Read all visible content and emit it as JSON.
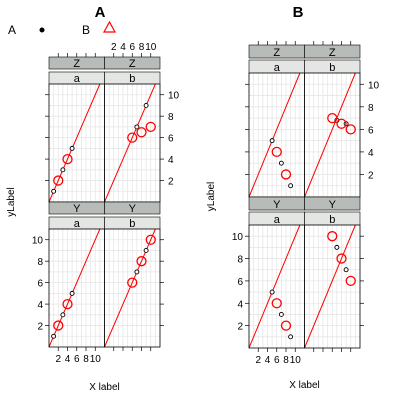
{
  "chart_data": {
    "type": "scatter",
    "legend": {
      "placement": "top-left",
      "items": [
        {
          "label": "A",
          "marker": "dot"
        },
        {
          "label": "B",
          "marker": "triangle"
        }
      ]
    },
    "colors": {
      "points": "#ff0000",
      "small_points": "#000000",
      "reference_line": "#ff0000",
      "strip_dark": "#b8bcb8",
      "strip_light": "#e4e6e4",
      "grid": "#e6e6e6"
    },
    "panels_sets": [
      {
        "title": "A",
        "xlabel": "X label",
        "ylabel": "yLabel",
        "xlim": [
          0,
          12
        ],
        "ylim": [
          0,
          11
        ],
        "x_ticks": [
          2,
          4,
          6,
          8,
          10
        ],
        "y_ticks": [
          2,
          4,
          6,
          8,
          10
        ],
        "grid": true,
        "reference_line": "y = x",
        "panels": [
          {
            "row": "Z",
            "col": "a",
            "small": [
              [
                1,
                1
              ],
              [
                3,
                3
              ],
              [
                5,
                5
              ]
            ],
            "large": [
              [
                2,
                2
              ],
              [
                4,
                4
              ]
            ]
          },
          {
            "row": "Z",
            "col": "b",
            "small": [
              [
                7,
                7
              ],
              [
                9,
                9
              ]
            ],
            "large": [
              [
                6,
                6
              ],
              [
                8,
                6.5
              ],
              [
                10,
                7
              ]
            ]
          },
          {
            "row": "Y",
            "col": "a",
            "small": [
              [
                1,
                1
              ],
              [
                3,
                3
              ],
              [
                5,
                5
              ]
            ],
            "large": [
              [
                2,
                2
              ],
              [
                4,
                4
              ]
            ]
          },
          {
            "row": "Y",
            "col": "b",
            "small": [
              [
                7,
                7
              ],
              [
                9,
                9
              ]
            ],
            "large": [
              [
                6,
                6
              ],
              [
                8,
                8
              ],
              [
                10,
                10
              ]
            ]
          }
        ]
      },
      {
        "title": "B",
        "xlabel": "X label",
        "ylabel": "yLabel",
        "xlim": [
          0,
          12
        ],
        "ylim": [
          0,
          11
        ],
        "x_ticks": [
          2,
          4,
          6,
          8,
          10
        ],
        "y_ticks": [
          2,
          4,
          6,
          8,
          10
        ],
        "grid": true,
        "reference_line": "y = x",
        "panels": [
          {
            "row": "Z",
            "col": "a",
            "small": [
              [
                5,
                5
              ],
              [
                7,
                3
              ],
              [
                9,
                1
              ]
            ],
            "large": [
              [
                6,
                4
              ],
              [
                8,
                2
              ]
            ]
          },
          {
            "row": "Z",
            "col": "b",
            "small": [
              [
                7,
                6.8
              ],
              [
                9,
                6.5
              ]
            ],
            "large": [
              [
                6,
                7
              ],
              [
                8,
                6.5
              ],
              [
                10,
                6
              ]
            ]
          },
          {
            "row": "Y",
            "col": "a",
            "small": [
              [
                5,
                5
              ],
              [
                7,
                3
              ],
              [
                9,
                1
              ]
            ],
            "large": [
              [
                6,
                4
              ],
              [
                8,
                2
              ]
            ]
          },
          {
            "row": "Y",
            "col": "b",
            "small": [
              [
                7,
                9
              ],
              [
                9,
                7
              ]
            ],
            "large": [
              [
                6,
                10
              ],
              [
                8,
                8
              ],
              [
                10,
                6
              ]
            ]
          }
        ]
      }
    ]
  }
}
